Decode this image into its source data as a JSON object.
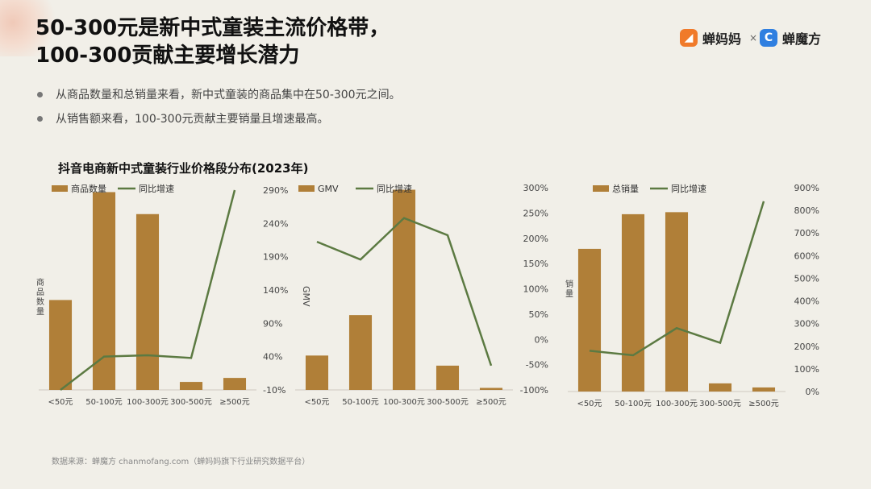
{
  "title_line1": "50-300元是新中式童装主流价格带，",
  "title_line2": "100-300贡献主要增长潜力",
  "logos": {
    "left": "蝉妈妈",
    "sep": "×",
    "right": "蝉魔方"
  },
  "bullets": [
    "从商品数量和总销量来看，新中式童装的商品集中在50-300元之间。",
    "从销售额来看，100-300元贡献主要销量且增速最高。"
  ],
  "chart_title": "抖音电商新中式童装行业价格段分布(2023年)",
  "source": "数据来源：蝉魔方 chanmofang.com（蝉妈妈旗下行业研究数据平台）",
  "colors": {
    "bar": "#b07f38",
    "line": "#5c7a42",
    "background": "#f1efe8"
  },
  "chart_data": [
    {
      "type": "bar",
      "categories": [
        "<50元",
        "50-100元",
        "100-300元",
        "300-500元",
        "≥500元"
      ],
      "series": [
        {
          "name": "商品数量",
          "type": "bar",
          "axis": "left",
          "values": [
            45,
            99,
            88,
            4,
            6
          ]
        },
        {
          "name": "同比增速",
          "type": "line",
          "axis": "right",
          "values": [
            -10,
            40,
            42,
            38,
            290
          ]
        }
      ],
      "ylabel": "商品数量",
      "ylim": [
        0,
        100
      ],
      "y2ticks": [
        "-10%",
        "40%",
        "90%",
        "140%",
        "190%",
        "240%",
        "290%"
      ],
      "y2lim": [
        -10,
        290
      ],
      "legend": "top-left"
    },
    {
      "type": "bar",
      "categories": [
        "<50元",
        "50-100元",
        "100-300元",
        "300-500元",
        "≥500元"
      ],
      "series": [
        {
          "name": "GMV",
          "type": "bar",
          "axis": "left",
          "values": [
            17,
            37,
            99,
            12,
            1
          ]
        },
        {
          "name": "同比增速",
          "type": "line",
          "axis": "right",
          "values": [
            193,
            158,
            240,
            206,
            -52
          ]
        }
      ],
      "ylabel": "GMV",
      "ylim": [
        0,
        100
      ],
      "y2ticks": [
        "300%",
        "250%",
        "200%",
        "150%",
        "100%",
        "50%",
        "0%",
        "-50%",
        "-100%"
      ],
      "y2lim": [
        -100,
        300
      ],
      "legend": "top-left"
    },
    {
      "type": "bar",
      "categories": [
        "<50元",
        "50-100元",
        "100-300元",
        "300-500元",
        "≥500元"
      ],
      "series": [
        {
          "name": "总销量",
          "type": "bar",
          "axis": "left",
          "values": [
            70,
            87,
            88,
            4,
            2
          ]
        },
        {
          "name": "同比增速",
          "type": "line",
          "axis": "right",
          "values": [
            180,
            160,
            280,
            215,
            840
          ]
        }
      ],
      "ylabel": "销量",
      "ylim": [
        0,
        100
      ],
      "y2ticks": [
        "900%",
        "800%",
        "700%",
        "600%",
        "500%",
        "400%",
        "300%",
        "200%",
        "100%",
        "0%"
      ],
      "y2lim": [
        0,
        900
      ],
      "legend": "top-left"
    }
  ]
}
